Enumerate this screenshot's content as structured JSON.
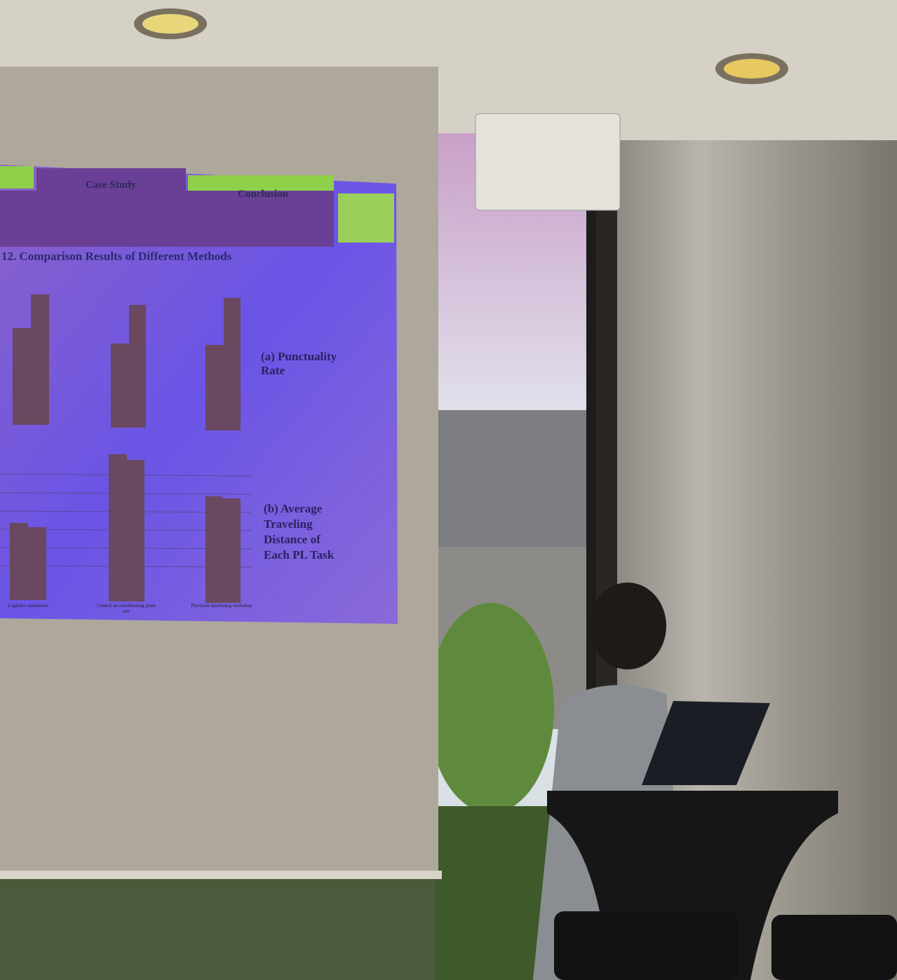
{
  "slide": {
    "tabs": [
      "Case Study",
      "Conclusion"
    ],
    "heading": "12. Comparison Results of Different Methods",
    "panel_a_label": [
      "(a) Punctuality",
      "Rate"
    ],
    "panel_b_label": [
      "(b) Average",
      "Traveling",
      "Distance of",
      "Each PL Task"
    ],
    "categories": [
      [
        "Logistics warehouse"
      ],
      [
        "Central air-conditioning plant",
        "site"
      ],
      [
        "Precision machining workshop"
      ]
    ]
  }
}
